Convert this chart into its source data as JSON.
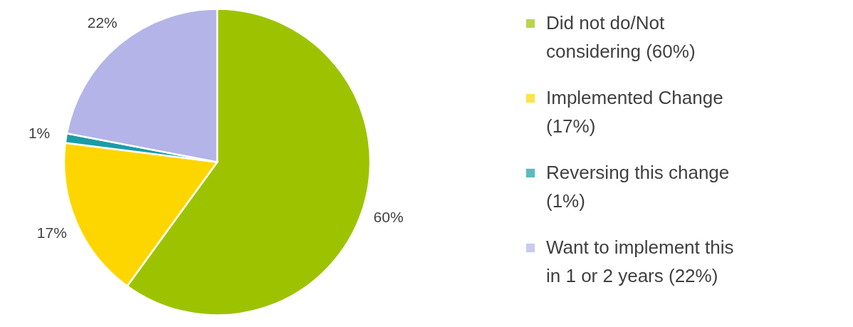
{
  "chart_data": {
    "type": "pie",
    "categories": [
      "Did not do/Not considering (60%)",
      "Implemented Change (17%)",
      "Reversing this change (1%)",
      "Want to implement this in 1 or 2 years (22%)"
    ],
    "values": [
      60,
      17,
      1,
      22
    ],
    "colors": [
      "#9dc300",
      "#fdd600",
      "#1a9ca6",
      "#b4b4e8"
    ],
    "value_labels": [
      "60%",
      "17%",
      "1%",
      "22%"
    ],
    "legend": "right"
  }
}
